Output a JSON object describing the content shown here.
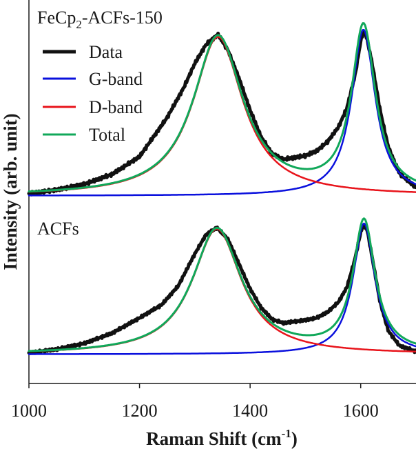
{
  "chart_data": {
    "type": "line",
    "title": "",
    "xlabel": "Raman Shift (cm",
    "xlabel_sup": "-1",
    "xlabel_close": ")",
    "ylabel": "Intensity (arb. unit)",
    "xlim": [
      1000,
      1700
    ],
    "x_ticks": [
      "1000",
      "1200",
      "1400",
      "1600"
    ],
    "x_tick_values": [
      1000,
      1200,
      1400,
      1600
    ],
    "legend": {
      "placement": "top-left",
      "entries": [
        {
          "name": "Data",
          "color": "#111111"
        },
        {
          "name": "G-band",
          "color": "#0a10dd"
        },
        {
          "name": "D-band",
          "color": "#e8141b"
        },
        {
          "name": "Total",
          "color": "#11a85a"
        }
      ]
    },
    "panels": [
      {
        "label_main": "FeCp",
        "label_sub": "2",
        "label_rest": "-ACFs-150",
        "position": "top",
        "ylim": [
          -0.03,
          1.05
        ],
        "d_band": {
          "center": 1342,
          "hwhm": 55,
          "amplitude": 0.853
        },
        "g_band": {
          "center": 1605,
          "hwhm": 26,
          "amplitude": 0.891
        },
        "data": {
          "x": [
            1000,
            1050,
            1100,
            1150,
            1200,
            1250,
            1280,
            1300,
            1320,
            1342,
            1360,
            1380,
            1400,
            1420,
            1440,
            1460,
            1480,
            1500,
            1520,
            1540,
            1560,
            1575,
            1590,
            1600,
            1605,
            1610,
            1620,
            1635,
            1650,
            1670,
            1700
          ],
          "y": [
            0.012,
            0.032,
            0.062,
            0.115,
            0.21,
            0.42,
            0.58,
            0.71,
            0.81,
            0.865,
            0.78,
            0.63,
            0.46,
            0.315,
            0.225,
            0.195,
            0.205,
            0.215,
            0.24,
            0.29,
            0.37,
            0.47,
            0.65,
            0.83,
            0.88,
            0.86,
            0.72,
            0.46,
            0.26,
            0.12,
            0.045
          ]
        }
      },
      {
        "label_main": "ACFs",
        "label_sub": "",
        "label_rest": "",
        "position": "bottom",
        "ylim": [
          -0.2,
          1.05
        ],
        "d_band": {
          "center": 1340,
          "hwhm": 54,
          "amplitude": 0.861
        },
        "g_band": {
          "center": 1606,
          "hwhm": 24,
          "amplitude": 0.899
        },
        "data": {
          "x": [
            1000,
            1050,
            1100,
            1150,
            1200,
            1240,
            1270,
            1300,
            1320,
            1340,
            1360,
            1380,
            1400,
            1420,
            1440,
            1460,
            1480,
            1500,
            1520,
            1540,
            1560,
            1575,
            1590,
            1600,
            1606,
            1612,
            1620,
            1635,
            1650,
            1670,
            1700
          ],
          "y": [
            0.01,
            0.035,
            0.075,
            0.145,
            0.25,
            0.34,
            0.47,
            0.69,
            0.82,
            0.87,
            0.79,
            0.62,
            0.45,
            0.32,
            0.24,
            0.215,
            0.225,
            0.235,
            0.25,
            0.29,
            0.36,
            0.46,
            0.66,
            0.84,
            0.89,
            0.85,
            0.68,
            0.36,
            0.16,
            0.06,
            0.02
          ]
        }
      }
    ]
  }
}
